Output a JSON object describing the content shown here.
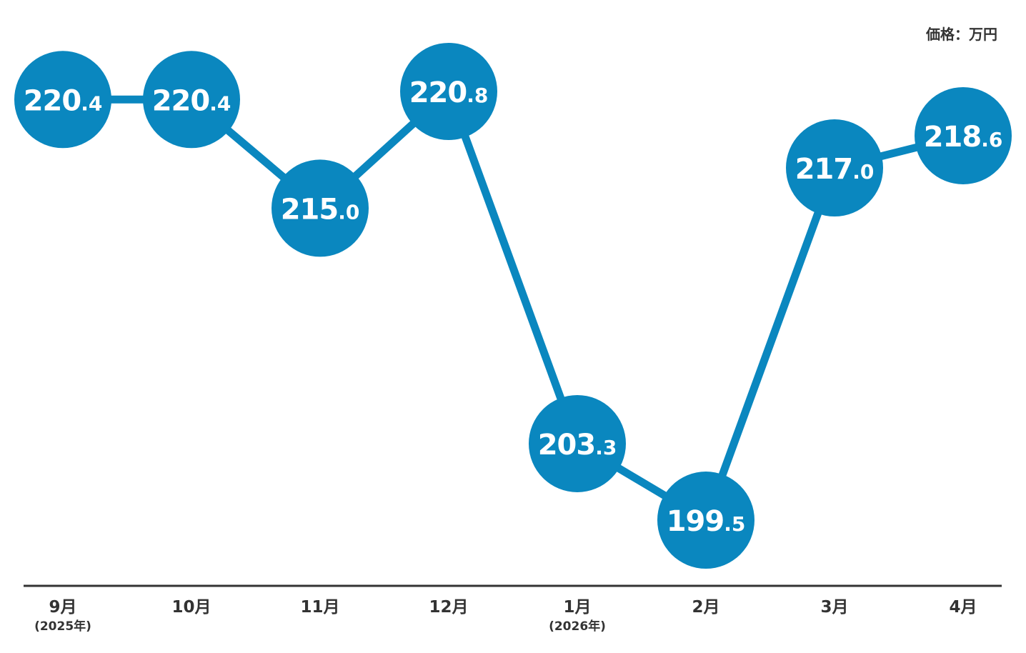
{
  "chart_data": {
    "type": "line",
    "unit_label": "価格：万円",
    "categories": [
      "9月",
      "10月",
      "11月",
      "12月",
      "1月",
      "2月",
      "3月",
      "4月"
    ],
    "category_sublabels": [
      "(2025年)",
      "",
      "",
      "",
      "(2026年)",
      "",
      "",
      ""
    ],
    "values": [
      220.4,
      220.4,
      215.0,
      220.8,
      203.3,
      199.5,
      217.0,
      218.6
    ],
    "value_labels": [
      "220.4",
      "220.4",
      "215.0",
      "220.8",
      "203.3",
      "199.5",
      "217.0",
      "218.6"
    ],
    "grid": false,
    "legend": "none",
    "colors": {
      "series": "#0a87bf",
      "axis": "#333333",
      "label_text": "#ffffff"
    }
  }
}
